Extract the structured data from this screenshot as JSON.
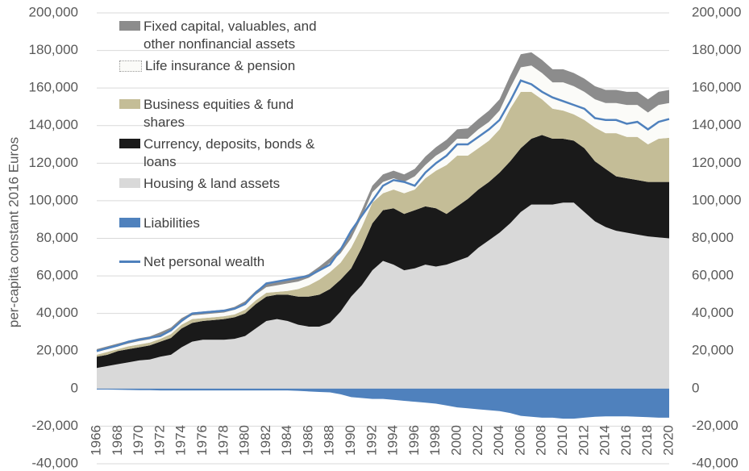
{
  "chart_data": {
    "type": "area",
    "y_label": "per-capita constant 2016 Euros",
    "x": [
      1966,
      1967,
      1968,
      1969,
      1970,
      1971,
      1972,
      1973,
      1974,
      1975,
      1976,
      1977,
      1978,
      1979,
      1980,
      1981,
      1982,
      1983,
      1984,
      1985,
      1986,
      1987,
      1988,
      1989,
      1990,
      1991,
      1992,
      1993,
      1994,
      1995,
      1996,
      1997,
      1998,
      1999,
      2000,
      2001,
      2002,
      2003,
      2004,
      2005,
      2006,
      2007,
      2008,
      2009,
      2010,
      2011,
      2012,
      2013,
      2014,
      2015,
      2016,
      2017,
      2018,
      2019,
      2020
    ],
    "xlim": [
      1966,
      2020
    ],
    "xticks": [
      1966,
      1968,
      1970,
      1972,
      1974,
      1976,
      1978,
      1980,
      1982,
      1984,
      1986,
      1988,
      1990,
      1992,
      1994,
      1996,
      1998,
      2000,
      2002,
      2004,
      2006,
      2008,
      2010,
      2012,
      2014,
      2016,
      2018,
      2020
    ],
    "ylim": [
      -40000,
      200000
    ],
    "yticks": [
      {
        "value": -40000,
        "label": "-40,000"
      },
      {
        "value": -20000,
        "label": "-20,000"
      },
      0,
      {
        "value": 20000,
        "label": "20,000"
      },
      {
        "value": 40000,
        "label": "40,000"
      },
      {
        "value": 60000,
        "label": "60,000"
      },
      {
        "value": 80000,
        "label": "80,000"
      },
      {
        "value": 100000,
        "label": "100,000"
      },
      {
        "value": 120000,
        "label": "120,000"
      },
      {
        "value": 140000,
        "label": "140,000"
      },
      {
        "value": 160000,
        "label": "160,000"
      },
      {
        "value": 180000,
        "label": "180,000"
      },
      {
        "value": 200000,
        "label": "200,000"
      }
    ],
    "y2lim": [
      -40000,
      200000
    ],
    "y2ticks": [
      {
        "value": -40000,
        "label": "-40,000"
      },
      {
        "value": -20000,
        "label": "-20,000"
      },
      0,
      {
        "value": 20000,
        "label": "20,000"
      },
      {
        "value": 40000,
        "label": "40,000"
      },
      {
        "value": 60000,
        "label": "60,000"
      },
      {
        "value": 80000,
        "label": "80,000"
      },
      {
        "value": 100000,
        "label": "100,000"
      },
      {
        "value": 120000,
        "label": "120,000"
      },
      {
        "value": 140000,
        "label": "140,000"
      },
      {
        "value": 160000,
        "label": "160,000"
      },
      {
        "value": 180000,
        "label": "180,000"
      },
      {
        "value": 200000,
        "label": "200,000"
      }
    ],
    "grid": true,
    "legend": "upper left",
    "series": [
      {
        "name": "Fixed capital, valuables, and other nonfinancial assets",
        "type": "area",
        "color": "#8c8c8c",
        "values": [
          1500,
          1500,
          1500,
          1500,
          1500,
          1500,
          1500,
          1500,
          1500,
          1500,
          1500,
          1500,
          1500,
          1500,
          1500,
          2000,
          2000,
          2000,
          2000,
          2000,
          2000,
          2500,
          2500,
          3000,
          3000,
          3500,
          3500,
          4000,
          4000,
          4000,
          4000,
          4500,
          4500,
          5000,
          5000,
          5500,
          5500,
          6000,
          6000,
          6500,
          7000,
          7000,
          7000,
          7000,
          7000,
          7000,
          7000,
          7000,
          7000,
          7000,
          7000,
          7000,
          7000,
          7000,
          7000
        ]
      },
      {
        "name": "Life insurance & pension",
        "type": "area",
        "color": "#fbfbf8",
        "values": [
          1500,
          1500,
          1500,
          1500,
          1800,
          1800,
          2000,
          2000,
          2000,
          2000,
          2000,
          2000,
          2000,
          2500,
          3000,
          3000,
          3000,
          3500,
          4000,
          4000,
          4000,
          4500,
          5000,
          5000,
          5000,
          5500,
          5500,
          6000,
          6000,
          6000,
          7000,
          7000,
          8000,
          8500,
          9000,
          9000,
          10000,
          10000,
          10000,
          11000,
          13000,
          14000,
          14000,
          14000,
          15000,
          15000,
          15000,
          15000,
          16000,
          16000,
          17000,
          17000,
          17000,
          18000,
          18500
        ]
      },
      {
        "name": "Business equities & fund shares",
        "type": "area",
        "color": "#c4bd97",
        "values": [
          1000,
          1500,
          1000,
          1500,
          1500,
          1500,
          1500,
          2000,
          2000,
          2000,
          1500,
          1500,
          1500,
          1500,
          2000,
          2000,
          2000,
          1500,
          2000,
          4000,
          6000,
          8000,
          9000,
          9000,
          11000,
          11000,
          11000,
          9000,
          10000,
          11000,
          11000,
          15000,
          20000,
          26000,
          27000,
          23000,
          22000,
          22000,
          23000,
          28000,
          30000,
          25000,
          19000,
          16000,
          15000,
          14000,
          15000,
          18000,
          19000,
          23000,
          22000,
          23000,
          20000,
          23000,
          23500
        ]
      },
      {
        "name": "Currency, deposits, bonds & loans",
        "type": "area",
        "color": "#1a1a1a",
        "values": [
          6000,
          6000,
          7000,
          7000,
          7000,
          7500,
          8000,
          9000,
          10000,
          10000,
          10000,
          10500,
          11000,
          11500,
          12000,
          13000,
          13000,
          13000,
          14000,
          15000,
          16000,
          17000,
          18000,
          17000,
          15000,
          20000,
          25000,
          27000,
          30000,
          30000,
          31000,
          31000,
          31000,
          27000,
          29000,
          31000,
          31000,
          31000,
          32000,
          33000,
          34000,
          35000,
          37000,
          35000,
          34000,
          33000,
          34000,
          32000,
          31000,
          29000,
          29000,
          29000,
          29000,
          29500,
          30000
        ]
      },
      {
        "name": "Housing & land assets",
        "type": "area",
        "color": "#d9d9d9",
        "values": [
          11000,
          12000,
          13000,
          14000,
          15000,
          15500,
          17000,
          18000,
          22000,
          25000,
          26000,
          26000,
          26000,
          26500,
          28000,
          32000,
          36000,
          37000,
          36000,
          34000,
          33000,
          33000,
          35000,
          41000,
          49000,
          55000,
          63000,
          68000,
          66000,
          63000,
          64000,
          66000,
          65000,
          66000,
          68000,
          70000,
          75000,
          79000,
          83000,
          88000,
          94000,
          98000,
          98000,
          98000,
          99000,
          99000,
          94000,
          89000,
          86000,
          84000,
          83000,
          82000,
          81000,
          80500,
          80000
        ]
      },
      {
        "name": "Liabilities",
        "type": "area",
        "color": "#4f81bd",
        "values": [
          -500,
          -500,
          -600,
          -700,
          -800,
          -800,
          -1000,
          -1000,
          -1000,
          -1000,
          -1000,
          -1000,
          -1000,
          -1000,
          -1000,
          -1000,
          -1000,
          -1000,
          -1000,
          -1200,
          -1500,
          -1800,
          -2000,
          -3000,
          -4500,
          -5000,
          -5500,
          -5500,
          -6000,
          -6500,
          -7000,
          -7500,
          -8000,
          -9000,
          -10000,
          -10500,
          -11000,
          -11500,
          -12000,
          -13000,
          -14500,
          -15000,
          -15500,
          -15500,
          -16000,
          -16000,
          -15500,
          -15000,
          -14800,
          -14800,
          -14800,
          -15000,
          -15200,
          -15500,
          -15500
        ]
      },
      {
        "name": "Net personal wealth",
        "type": "line",
        "color": "#4f81bd",
        "values": [
          20000,
          21500,
          23000,
          25000,
          26000,
          27000,
          28000,
          31000,
          36000,
          40000,
          40500,
          41000,
          41500,
          42500,
          45000,
          51000,
          56000,
          57000,
          58000,
          59000,
          60000,
          63000,
          66000,
          74000,
          84000,
          92000,
          100000,
          108000,
          111000,
          110000,
          108000,
          115000,
          120000,
          124000,
          130000,
          130000,
          134000,
          138000,
          143000,
          153000,
          164000,
          162000,
          158000,
          155000,
          153000,
          151000,
          149000,
          144000,
          143000,
          143000,
          141000,
          142000,
          138000,
          142000,
          143500
        ]
      }
    ]
  }
}
